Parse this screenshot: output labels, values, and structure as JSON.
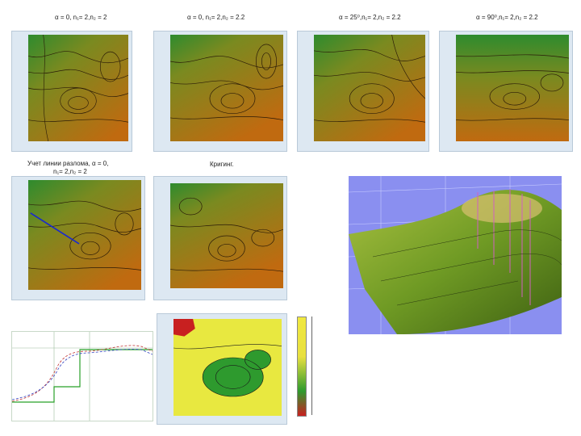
{
  "captions": {
    "p1": "α = 0, n₁= 2,n₂ = 2",
    "p2": "α = 0, n₁= 2,n₂ = 2.2",
    "p3": "α = 25⁰,n₁= 2,n₂ = 2.2",
    "p4": "α = 90⁰,n₁= 2,n₂ = 2.2",
    "p5_line1": "Учет линии разлома, α = 0,",
    "p5_line2": "n₁= 2,n₂ = 2",
    "p6": "Кригинг."
  },
  "colors": {
    "green": "#2e8b2e",
    "brown": "#b86a1a",
    "panel_bg": "#dde8f2",
    "contour": "#2a1a08"
  }
}
